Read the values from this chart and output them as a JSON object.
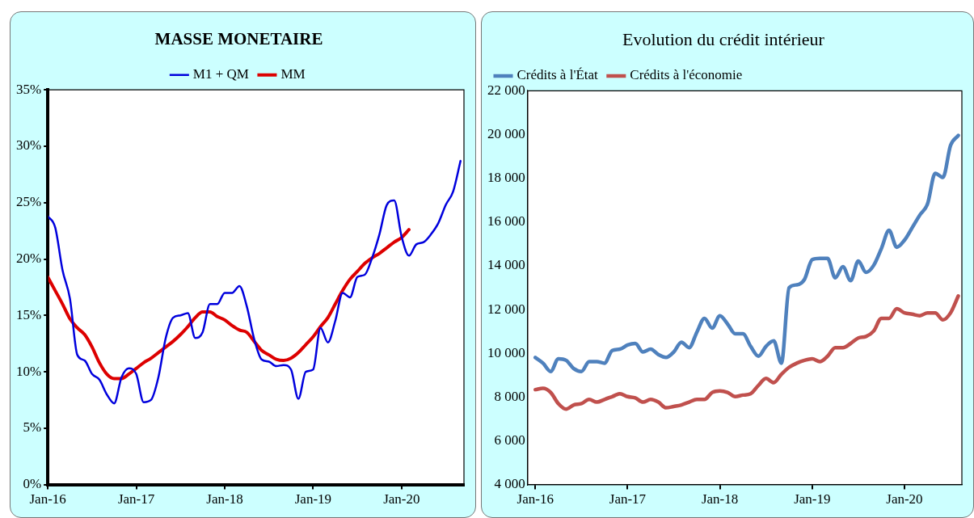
{
  "chart_data": [
    {
      "type": "line",
      "title": "MASSE MONETAIRE",
      "legend": "top",
      "grid": false,
      "marker": "none",
      "line_style": "solid",
      "x": [
        "2016-01",
        "2016-02",
        "2016-03",
        "2016-04",
        "2016-05",
        "2016-06",
        "2016-07",
        "2016-08",
        "2016-09",
        "2016-10",
        "2016-11",
        "2016-12",
        "2017-01",
        "2017-02",
        "2017-03",
        "2017-04",
        "2017-05",
        "2017-06",
        "2017-07",
        "2017-08",
        "2017-09",
        "2017-10",
        "2017-11",
        "2017-12",
        "2018-01",
        "2018-02",
        "2018-03",
        "2018-04",
        "2018-05",
        "2018-06",
        "2018-07",
        "2018-08",
        "2018-09",
        "2018-10",
        "2018-11",
        "2018-12",
        "2019-01",
        "2019-02",
        "2019-03",
        "2019-04",
        "2019-05",
        "2019-06",
        "2019-07",
        "2019-08",
        "2019-09",
        "2019-10",
        "2019-11",
        "2019-12",
        "2020-01",
        "2020-02",
        "2020-03",
        "2020-04",
        "2020-05",
        "2020-06",
        "2020-07",
        "2020-08",
        "2020-09"
      ],
      "xlim": [
        "2016-01",
        "2020-09-15"
      ],
      "xticks": [
        {
          "value": "2016-01",
          "label": "Jan-16"
        },
        {
          "value": "2017-01",
          "label": "Jan-17"
        },
        {
          "value": "2018-01",
          "label": "Jan-18"
        },
        {
          "value": "2019-01",
          "label": "Jan-19"
        },
        {
          "value": "2020-01",
          "label": "Jan-20"
        }
      ],
      "ylim": [
        0,
        35
      ],
      "yticks": [
        {
          "value": 0,
          "label": "0%"
        },
        {
          "value": 5,
          "label": "5%"
        },
        {
          "value": 10,
          "label": "10%"
        },
        {
          "value": 15,
          "label": "15%"
        },
        {
          "value": 20,
          "label": "20%"
        },
        {
          "value": 25,
          "label": "25%"
        },
        {
          "value": 30,
          "label": "30%"
        },
        {
          "value": 35,
          "label": "35%"
        }
      ],
      "series": [
        {
          "name": "M1 + QM",
          "color": "#0000dd",
          "values": [
            23.8,
            22.8,
            19.0,
            16.5,
            11.5,
            11.0,
            9.8,
            9.3,
            8.0,
            7.2,
            9.5,
            10.3,
            9.8,
            7.3,
            7.5,
            9.5,
            13.0,
            14.8,
            15.0,
            15.2,
            13.0,
            13.5,
            16.0,
            16.0,
            17.0,
            17.0,
            17.6,
            15.8,
            12.9,
            11.1,
            10.9,
            10.5,
            10.6,
            10.2,
            7.6,
            10.0,
            10.2,
            13.9,
            12.6,
            14.5,
            17.0,
            16.6,
            18.4,
            18.6,
            20.1,
            22.2,
            24.8,
            25.2,
            22.0,
            20.3,
            21.3,
            21.5,
            22.2,
            23.2,
            24.8,
            26.0,
            28.7
          ]
        },
        {
          "name": "MM",
          "color": "#dd0000",
          "values": [
            18.4,
            17.2,
            16.0,
            14.7,
            13.9,
            13.3,
            12.2,
            10.8,
            9.8,
            9.4,
            9.4,
            9.8,
            10.3,
            10.8,
            11.2,
            11.7,
            12.2,
            12.7,
            13.3,
            14.0,
            14.8,
            15.3,
            15.3,
            14.9,
            14.6,
            14.1,
            13.7,
            13.5,
            12.7,
            11.9,
            11.5,
            11.1,
            11.0,
            11.2,
            11.7,
            12.4,
            13.1,
            14.0,
            14.8,
            16.0,
            17.2,
            18.2,
            18.9,
            19.6,
            20.1,
            20.5,
            21.0,
            21.5,
            21.9,
            22.6,
            null,
            null,
            null,
            null,
            null,
            null,
            null
          ]
        }
      ]
    },
    {
      "type": "line",
      "title": "Evolution du crédit intérieur",
      "legend": "top left",
      "grid": false,
      "marker": "none",
      "line_style": "solid",
      "x": [
        "2016-01",
        "2016-02",
        "2016-03",
        "2016-04",
        "2016-05",
        "2016-06",
        "2016-07",
        "2016-08",
        "2016-09",
        "2016-10",
        "2016-11",
        "2016-12",
        "2017-01",
        "2017-02",
        "2017-03",
        "2017-04",
        "2017-05",
        "2017-06",
        "2017-07",
        "2017-08",
        "2017-09",
        "2017-10",
        "2017-11",
        "2017-12",
        "2018-01",
        "2018-02",
        "2018-03",
        "2018-04",
        "2018-05",
        "2018-06",
        "2018-07",
        "2018-08",
        "2018-09",
        "2018-10",
        "2018-11",
        "2018-12",
        "2019-01",
        "2019-02",
        "2019-03",
        "2019-04",
        "2019-05",
        "2019-06",
        "2019-07",
        "2019-08",
        "2019-09",
        "2019-10",
        "2019-11",
        "2019-12",
        "2020-01",
        "2020-02",
        "2020-03",
        "2020-04",
        "2020-05",
        "2020-06",
        "2020-07",
        "2020-08"
      ],
      "xlim": [
        "2015-12",
        "2020-08-15"
      ],
      "xticks": [
        {
          "value": "2016-01",
          "label": "Jan-16"
        },
        {
          "value": "2017-01",
          "label": "Jan-17"
        },
        {
          "value": "2018-01",
          "label": "Jan-18"
        },
        {
          "value": "2019-01",
          "label": "Jan-19"
        },
        {
          "value": "2020-01",
          "label": "Jan-20"
        }
      ],
      "ylim": [
        4000,
        22000
      ],
      "yticks": [
        {
          "value": 4000,
          "label": "4 000"
        },
        {
          "value": 6000,
          "label": "6 000"
        },
        {
          "value": 8000,
          "label": "8 000"
        },
        {
          "value": 10000,
          "label": "10 000"
        },
        {
          "value": 12000,
          "label": "12 000"
        },
        {
          "value": 14000,
          "label": "14 000"
        },
        {
          "value": 16000,
          "label": "16 000"
        },
        {
          "value": 18000,
          "label": "18 000"
        },
        {
          "value": 20000,
          "label": "20 000"
        },
        {
          "value": 22000,
          "label": "22 000"
        }
      ],
      "series": [
        {
          "name": "Crédits à l'État",
          "color": "#4f81bd",
          "values": [
            9810,
            9550,
            9170,
            9750,
            9680,
            9300,
            9170,
            9620,
            9620,
            9550,
            10130,
            10190,
            10380,
            10450,
            10060,
            10190,
            9940,
            9810,
            10060,
            10510,
            10260,
            10960,
            11600,
            11150,
            11720,
            11340,
            10890,
            10890,
            10320,
            9870,
            10320,
            10570,
            9550,
            13000,
            13130,
            13380,
            14280,
            14340,
            14340,
            13450,
            13960,
            13320,
            14220,
            13700,
            14020,
            14790,
            15620,
            14850,
            15170,
            15740,
            16320,
            16830,
            18230,
            18040,
            19510,
            19960
          ]
        },
        {
          "name": "Crédits à l'économie",
          "color": "#c0504d",
          "values": [
            8340,
            8400,
            8210,
            7700,
            7450,
            7640,
            7700,
            7890,
            7770,
            7890,
            8020,
            8150,
            8020,
            7960,
            7770,
            7890,
            7770,
            7510,
            7570,
            7640,
            7770,
            7890,
            7890,
            8210,
            8280,
            8210,
            8020,
            8090,
            8150,
            8530,
            8850,
            8660,
            9040,
            9360,
            9550,
            9680,
            9750,
            9620,
            9870,
            10260,
            10260,
            10450,
            10700,
            10770,
            11020,
            11600,
            11600,
            12040,
            11850,
            11790,
            11720,
            11850,
            11850,
            11530,
            11850,
            12620
          ]
        }
      ]
    }
  ]
}
